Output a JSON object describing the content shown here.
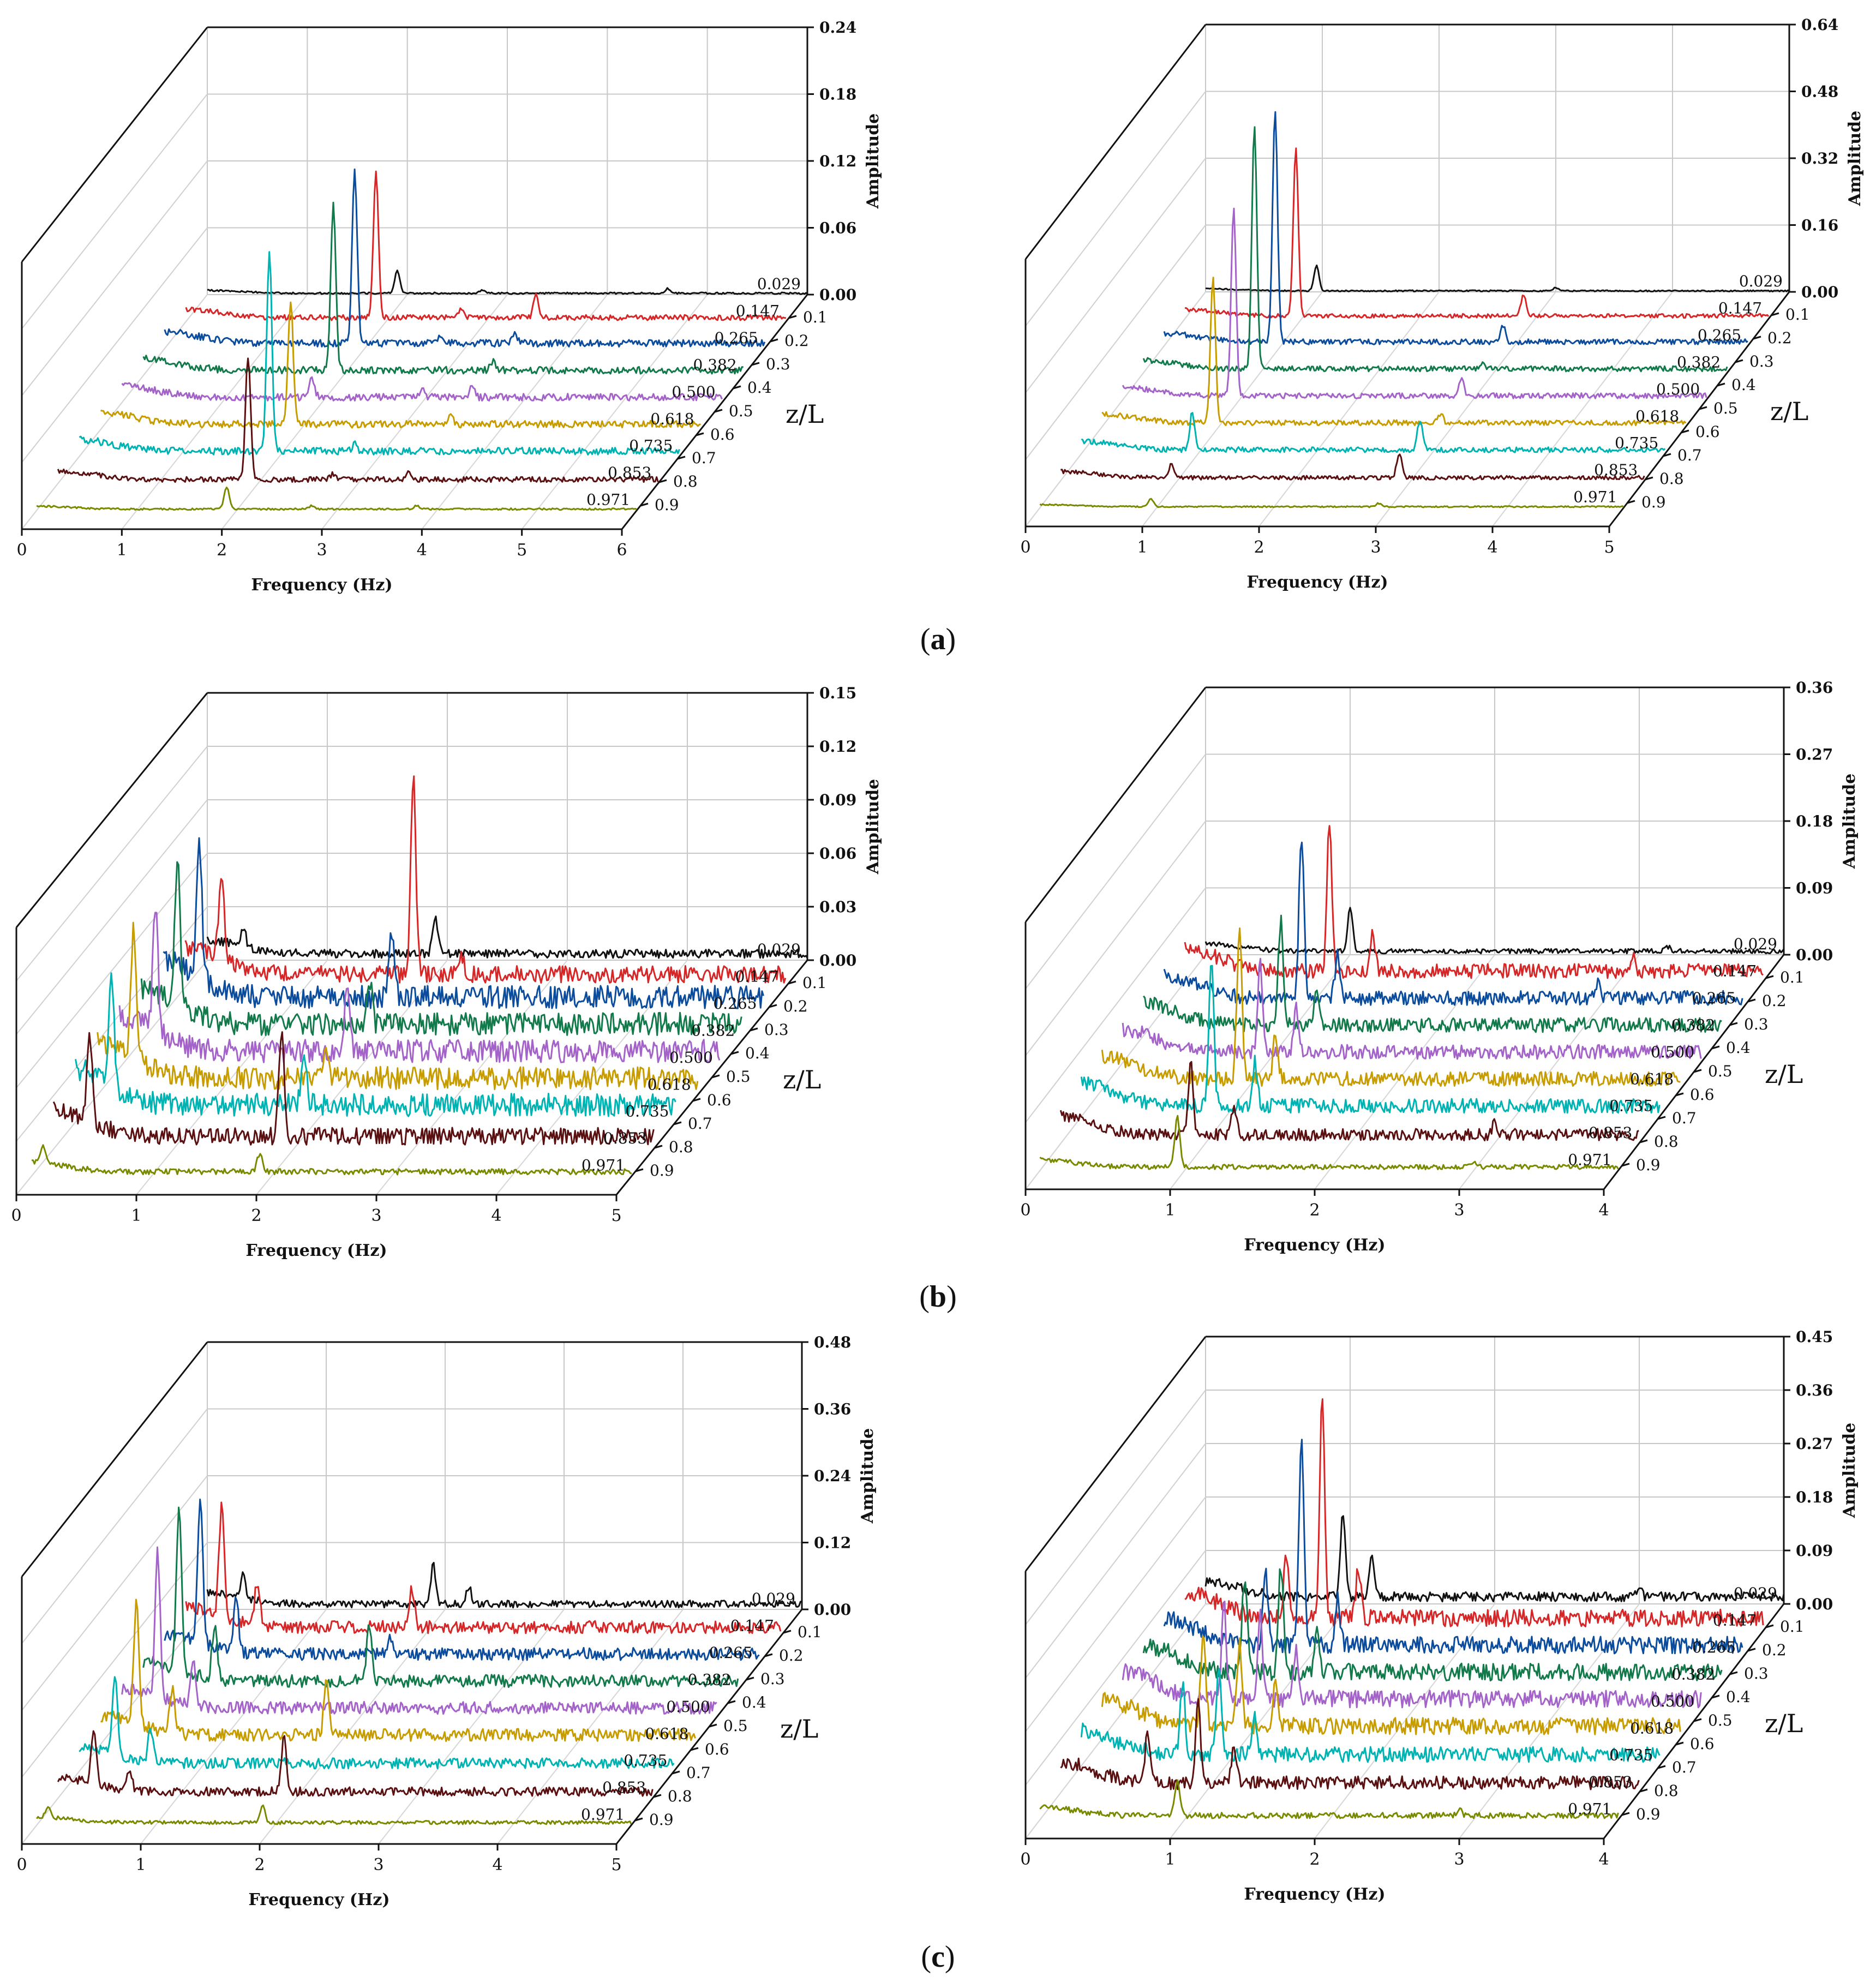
{
  "figure": {
    "captions": [
      {
        "open": "(",
        "letter": "a",
        "close": ")"
      },
      {
        "open": "(",
        "letter": "b",
        "close": ")"
      },
      {
        "open": "(",
        "letter": "c",
        "close": ")"
      }
    ],
    "colors": [
      "#111111",
      "#d62728",
      "#0b4c9c",
      "#127a4a",
      "#a463c8",
      "#c79c00",
      "#00b3b3",
      "#5a1010",
      "#7a8a00"
    ]
  },
  "chart_data": [
    {
      "type": "line",
      "panel": "a-left",
      "title": "",
      "xlabel": "Frequency (Hz)",
      "ylabel": "Amplitude",
      "zlabel": "z/L",
      "xlim": [
        0,
        6
      ],
      "ylim": [
        0,
        0.24
      ],
      "xticks": [
        "0",
        "1",
        "2",
        "3",
        "4",
        "5",
        "6"
      ],
      "yticks": [
        "0.00",
        "0.06",
        "0.12",
        "0.18",
        "0.24"
      ],
      "zticks": [
        "0.1",
        "0.2",
        "0.3",
        "0.4",
        "0.5",
        "0.6",
        "0.7",
        "0.8",
        "0.9"
      ],
      "series": [
        {
          "name": "0.029",
          "peaks": [
            [
              1.9,
              0.02
            ],
            [
              2.75,
              0.003
            ],
            [
              4.6,
              0.004
            ]
          ],
          "noise": 0.001
        },
        {
          "name": "0.147",
          "peaks": [
            [
              1.9,
              0.13
            ],
            [
              2.75,
              0.008
            ],
            [
              3.5,
              0.02
            ]
          ],
          "noise": 0.003
        },
        {
          "name": "0.265",
          "peaks": [
            [
              1.9,
              0.155
            ],
            [
              2.75,
              0.006
            ],
            [
              3.5,
              0.008
            ]
          ],
          "noise": 0.004
        },
        {
          "name": "0.382",
          "peaks": [
            [
              1.9,
              0.15
            ],
            [
              3.5,
              0.008
            ]
          ],
          "noise": 0.004
        },
        {
          "name": "0.500",
          "peaks": [
            [
              1.9,
              0.018
            ],
            [
              3.0,
              0.006
            ],
            [
              3.5,
              0.008
            ]
          ],
          "noise": 0.004
        },
        {
          "name": "0.618",
          "peaks": [
            [
              1.9,
              0.11
            ],
            [
              3.5,
              0.007
            ]
          ],
          "noise": 0.004
        },
        {
          "name": "0.735",
          "peaks": [
            [
              1.9,
              0.18
            ],
            [
              2.75,
              0.006
            ]
          ],
          "noise": 0.004
        },
        {
          "name": "0.853",
          "peaks": [
            [
              1.9,
              0.11
            ],
            [
              2.75,
              0.005
            ],
            [
              3.5,
              0.006
            ]
          ],
          "noise": 0.003
        },
        {
          "name": "0.971",
          "peaks": [
            [
              1.9,
              0.02
            ],
            [
              2.75,
              0.003
            ],
            [
              3.8,
              0.003
            ]
          ],
          "noise": 0.001
        }
      ]
    },
    {
      "type": "line",
      "panel": "a-right",
      "title": "",
      "xlabel": "Frequency (Hz)",
      "ylabel": "Amplitude",
      "zlabel": "z/L",
      "xlim": [
        0,
        5
      ],
      "ylim": [
        0,
        0.64
      ],
      "xticks": [
        "0",
        "1",
        "2",
        "3",
        "4",
        "5"
      ],
      "yticks": [
        "0.00",
        "0.16",
        "0.32",
        "0.48",
        "0.64"
      ],
      "zticks": [
        "0.1",
        "0.2",
        "0.3",
        "0.4",
        "0.5",
        "0.6",
        "0.7",
        "0.8",
        "0.9"
      ],
      "series": [
        {
          "name": "0.029",
          "peaks": [
            [
              0.95,
              0.06
            ],
            [
              3.0,
              0.008
            ]
          ],
          "noise": 0.002
        },
        {
          "name": "0.147",
          "peaks": [
            [
              0.95,
              0.4
            ],
            [
              2.9,
              0.05
            ]
          ],
          "noise": 0.006
        },
        {
          "name": "0.265",
          "peaks": [
            [
              0.95,
              0.55
            ],
            [
              2.9,
              0.04
            ]
          ],
          "noise": 0.008
        },
        {
          "name": "0.382",
          "peaks": [
            [
              0.95,
              0.58
            ],
            [
              2.9,
              0.01
            ]
          ],
          "noise": 0.008
        },
        {
          "name": "0.500",
          "peaks": [
            [
              0.95,
              0.45
            ],
            [
              2.9,
              0.04
            ]
          ],
          "noise": 0.008
        },
        {
          "name": "0.618",
          "peaks": [
            [
              0.95,
              0.35
            ],
            [
              2.9,
              0.02
            ]
          ],
          "noise": 0.008
        },
        {
          "name": "0.735",
          "peaks": [
            [
              0.95,
              0.09
            ],
            [
              2.9,
              0.07
            ]
          ],
          "noise": 0.008
        },
        {
          "name": "0.853",
          "peaks": [
            [
              0.95,
              0.035
            ],
            [
              2.9,
              0.06
            ]
          ],
          "noise": 0.006
        },
        {
          "name": "0.971",
          "peaks": [
            [
              0.95,
              0.02
            ],
            [
              2.9,
              0.008
            ]
          ],
          "noise": 0.002
        }
      ]
    },
    {
      "type": "line",
      "panel": "b-left",
      "title": "",
      "xlabel": "Frequency (Hz)",
      "ylabel": "Amplitude",
      "zlabel": "z/L",
      "xlim": [
        0,
        5
      ],
      "ylim": [
        0,
        0.15
      ],
      "xticks": [
        "0",
        "1",
        "2",
        "3",
        "4",
        "5"
      ],
      "yticks": [
        "0.00",
        "0.03",
        "0.06",
        "0.09",
        "0.12",
        "0.15"
      ],
      "zticks": [
        "0.1",
        "0.2",
        "0.3",
        "0.4",
        "0.5",
        "0.6",
        "0.7",
        "0.8",
        "0.9"
      ],
      "series": [
        {
          "name": "0.029",
          "peaks": [
            [
              0.3,
              0.01
            ],
            [
              1.9,
              0.02
            ]
          ],
          "noise": 0.003
        },
        {
          "name": "0.147",
          "peaks": [
            [
              0.3,
              0.05
            ],
            [
              1.9,
              0.11
            ],
            [
              2.3,
              0.01
            ]
          ],
          "noise": 0.006
        },
        {
          "name": "0.265",
          "peaks": [
            [
              0.3,
              0.075
            ],
            [
              1.9,
              0.04
            ]
          ],
          "noise": 0.008
        },
        {
          "name": "0.382",
          "peaks": [
            [
              0.3,
              0.08
            ],
            [
              1.9,
              0.025
            ]
          ],
          "noise": 0.008
        },
        {
          "name": "0.500",
          "peaks": [
            [
              0.3,
              0.07
            ],
            [
              1.9,
              0.04
            ]
          ],
          "noise": 0.008
        },
        {
          "name": "0.618",
          "peaks": [
            [
              0.3,
              0.07
            ],
            [
              1.9,
              0.02
            ]
          ],
          "noise": 0.008
        },
        {
          "name": "0.735",
          "peaks": [
            [
              0.3,
              0.06
            ],
            [
              1.9,
              0.03
            ]
          ],
          "noise": 0.008
        },
        {
          "name": "0.853",
          "peaks": [
            [
              0.3,
              0.05
            ],
            [
              1.9,
              0.06
            ]
          ],
          "noise": 0.006
        },
        {
          "name": "0.971",
          "peaks": [
            [
              0.1,
              0.01
            ],
            [
              1.9,
              0.01
            ]
          ],
          "noise": 0.002
        }
      ]
    },
    {
      "type": "line",
      "panel": "b-right",
      "title": "",
      "xlabel": "Frequency (Hz)",
      "ylabel": "Amplitude",
      "zlabel": "z/L",
      "xlim": [
        0,
        4
      ],
      "ylim": [
        0,
        0.36
      ],
      "xticks": [
        "0",
        "1",
        "2",
        "3",
        "4"
      ],
      "yticks": [
        "0.00",
        "0.09",
        "0.18",
        "0.27",
        "0.36"
      ],
      "zticks": [
        "0.1",
        "0.2",
        "0.3",
        "0.4",
        "0.5",
        "0.6",
        "0.7",
        "0.8",
        "0.9"
      ],
      "series": [
        {
          "name": "0.029",
          "peaks": [
            [
              1.0,
              0.06
            ],
            [
              3.2,
              0.006
            ]
          ],
          "noise": 0.004
        },
        {
          "name": "0.147",
          "peaks": [
            [
              1.0,
              0.2
            ],
            [
              1.3,
              0.05
            ],
            [
              3.1,
              0.02
            ]
          ],
          "noise": 0.012
        },
        {
          "name": "0.265",
          "peaks": [
            [
              0.95,
              0.22
            ],
            [
              1.2,
              0.06
            ],
            [
              3.0,
              0.02
            ]
          ],
          "noise": 0.012
        },
        {
          "name": "0.382",
          "peaks": [
            [
              0.95,
              0.14
            ],
            [
              1.2,
              0.05
            ]
          ],
          "noise": 0.012
        },
        {
          "name": "0.500",
          "peaks": [
            [
              0.95,
              0.12
            ],
            [
              1.2,
              0.06
            ]
          ],
          "noise": 0.012
        },
        {
          "name": "0.618",
          "peaks": [
            [
              0.95,
              0.2
            ],
            [
              1.2,
              0.06
            ]
          ],
          "noise": 0.012
        },
        {
          "name": "0.735",
          "peaks": [
            [
              0.9,
              0.2
            ],
            [
              1.2,
              0.06
            ]
          ],
          "noise": 0.012
        },
        {
          "name": "0.853",
          "peaks": [
            [
              0.9,
              0.1
            ],
            [
              1.2,
              0.04
            ],
            [
              3.0,
              0.015
            ]
          ],
          "noise": 0.01
        },
        {
          "name": "0.971",
          "peaks": [
            [
              0.95,
              0.07
            ],
            [
              3.0,
              0.006
            ]
          ],
          "noise": 0.004
        }
      ]
    },
    {
      "type": "line",
      "panel": "c-left",
      "title": "",
      "xlabel": "Frequency (Hz)",
      "ylabel": "Amplitude",
      "zlabel": "z/L",
      "xlim": [
        0,
        5
      ],
      "ylim": [
        0,
        0.48
      ],
      "xticks": [
        "0",
        "1",
        "2",
        "3",
        "4",
        "5"
      ],
      "yticks": [
        "0.00",
        "0.12",
        "0.24",
        "0.36",
        "0.48"
      ],
      "zticks": [
        "0.1",
        "0.2",
        "0.3",
        "0.4",
        "0.5",
        "0.6",
        "0.7",
        "0.8",
        "0.9"
      ],
      "series": [
        {
          "name": "0.029",
          "peaks": [
            [
              0.3,
              0.04
            ],
            [
              1.9,
              0.07
            ],
            [
              2.2,
              0.03
            ]
          ],
          "noise": 0.008
        },
        {
          "name": "0.147",
          "peaks": [
            [
              0.3,
              0.2
            ],
            [
              0.6,
              0.08
            ],
            [
              1.9,
              0.07
            ]
          ],
          "noise": 0.014
        },
        {
          "name": "0.265",
          "peaks": [
            [
              0.3,
              0.26
            ],
            [
              0.6,
              0.1
            ],
            [
              1.9,
              0.03
            ]
          ],
          "noise": 0.014
        },
        {
          "name": "0.382",
          "peaks": [
            [
              0.3,
              0.3
            ],
            [
              0.6,
              0.1
            ],
            [
              1.9,
              0.1
            ]
          ],
          "noise": 0.014
        },
        {
          "name": "0.500",
          "peaks": [
            [
              0.3,
              0.26
            ],
            [
              0.6,
              0.08
            ]
          ],
          "noise": 0.014
        },
        {
          "name": "0.618",
          "peaks": [
            [
              0.3,
              0.22
            ],
            [
              0.6,
              0.08
            ],
            [
              1.9,
              0.1
            ]
          ],
          "noise": 0.014
        },
        {
          "name": "0.735",
          "peaks": [
            [
              0.3,
              0.14
            ],
            [
              0.6,
              0.06
            ]
          ],
          "noise": 0.012
        },
        {
          "name": "0.853",
          "peaks": [
            [
              0.3,
              0.1
            ],
            [
              0.6,
              0.04
            ],
            [
              1.9,
              0.1
            ]
          ],
          "noise": 0.01
        },
        {
          "name": "0.971",
          "peaks": [
            [
              0.1,
              0.02
            ],
            [
              1.9,
              0.03
            ]
          ],
          "noise": 0.004
        }
      ]
    },
    {
      "type": "line",
      "panel": "c-right",
      "title": "",
      "xlabel": "Frequency (Hz)",
      "ylabel": "Amplitude",
      "zlabel": "z/L",
      "xlim": [
        0,
        4
      ],
      "ylim": [
        0,
        0.45
      ],
      "xticks": [
        "0",
        "1",
        "2",
        "3",
        "4"
      ],
      "yticks": [
        "0.00",
        "0.09",
        "0.18",
        "0.27",
        "0.36",
        "0.45"
      ],
      "zticks": [
        "0.1",
        "0.2",
        "0.3",
        "0.4",
        "0.5",
        "0.6",
        "0.7",
        "0.8",
        "0.9"
      ],
      "series": [
        {
          "name": "0.029",
          "peaks": [
            [
              0.95,
              0.14
            ],
            [
              1.15,
              0.07
            ],
            [
              3.0,
              0.02
            ]
          ],
          "noise": 0.01
        },
        {
          "name": "0.147",
          "peaks": [
            [
              0.95,
              0.38
            ],
            [
              0.7,
              0.1
            ],
            [
              1.2,
              0.08
            ]
          ],
          "noise": 0.018
        },
        {
          "name": "0.265",
          "peaks": [
            [
              0.95,
              0.36
            ],
            [
              0.7,
              0.12
            ],
            [
              1.2,
              0.08
            ]
          ],
          "noise": 0.018
        },
        {
          "name": "0.382",
          "peaks": [
            [
              0.95,
              0.18
            ],
            [
              0.7,
              0.16
            ],
            [
              1.2,
              0.08
            ]
          ],
          "noise": 0.018
        },
        {
          "name": "0.500",
          "peaks": [
            [
              0.95,
              0.14
            ],
            [
              0.7,
              0.16
            ],
            [
              1.2,
              0.08
            ]
          ],
          "noise": 0.018
        },
        {
          "name": "0.618",
          "peaks": [
            [
              0.95,
              0.14
            ],
            [
              0.7,
              0.16
            ],
            [
              1.2,
              0.08
            ]
          ],
          "noise": 0.018
        },
        {
          "name": "0.735",
          "peaks": [
            [
              0.95,
              0.14
            ],
            [
              0.7,
              0.12
            ],
            [
              1.2,
              0.06
            ]
          ],
          "noise": 0.016
        },
        {
          "name": "0.853",
          "peaks": [
            [
              0.95,
              0.14
            ],
            [
              0.6,
              0.08
            ],
            [
              1.2,
              0.06
            ]
          ],
          "noise": 0.014
        },
        {
          "name": "0.971",
          "peaks": [
            [
              0.95,
              0.06
            ],
            [
              2.9,
              0.01
            ]
          ],
          "noise": 0.006
        }
      ]
    }
  ]
}
